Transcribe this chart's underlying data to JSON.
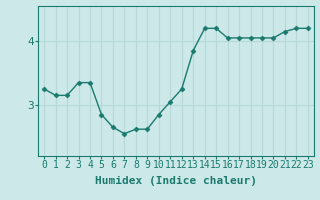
{
  "x": [
    0,
    1,
    2,
    3,
    4,
    5,
    6,
    7,
    8,
    9,
    10,
    11,
    12,
    13,
    14,
    15,
    16,
    17,
    18,
    19,
    20,
    21,
    22,
    23
  ],
  "y": [
    3.25,
    3.15,
    3.15,
    3.35,
    3.35,
    2.85,
    2.65,
    2.55,
    2.62,
    2.62,
    2.85,
    3.05,
    3.25,
    3.85,
    4.2,
    4.2,
    4.05,
    4.05,
    4.05,
    4.05,
    4.05,
    4.15,
    4.2,
    4.2
  ],
  "line_color": "#1a7a6e",
  "marker": "D",
  "marker_size": 2.5,
  "bg_color": "#cce8e8",
  "grid_color": "#b8d8d8",
  "xlabel": "Humidex (Indice chaleur)",
  "xlabel_fontsize": 8,
  "tick_fontsize": 7,
  "yticks": [
    3,
    4
  ],
  "xlim": [
    -0.5,
    23.5
  ],
  "ylim": [
    2.2,
    4.55
  ]
}
